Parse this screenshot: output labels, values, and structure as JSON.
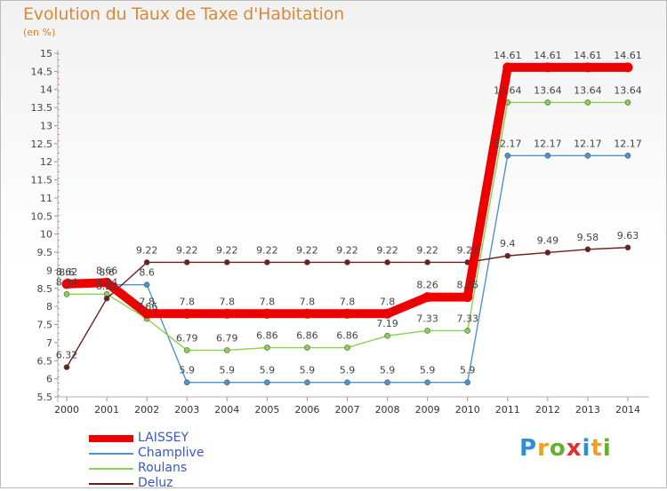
{
  "title": "Evolution du Taux de Taxe d'Habitation",
  "subtitle": "(en %)",
  "logo": {
    "letters": [
      {
        "ch": "P",
        "color": "#2f8fd6"
      },
      {
        "ch": "r",
        "color": "#f0a020"
      },
      {
        "ch": "o",
        "color": "#66b030"
      },
      {
        "ch": "x",
        "color": "#e03030"
      },
      {
        "ch": "i",
        "color": "#2f8fd6"
      },
      {
        "ch": "t",
        "color": "#f0a020"
      },
      {
        "ch": "i",
        "color": "#66b030"
      }
    ]
  },
  "chart_data": {
    "type": "line",
    "title": "Evolution du Taux de Taxe d'Habitation",
    "ylabel": "(en %)",
    "xlabel": "",
    "x": [
      "2000",
      "2001",
      "2002",
      "2003",
      "2004",
      "2005",
      "2006",
      "2007",
      "2008",
      "2009",
      "2010",
      "2011",
      "2012",
      "2013",
      "2014"
    ],
    "ylim": [
      5.5,
      15
    ],
    "yticks": [
      5.5,
      6,
      6.5,
      7,
      7.5,
      8,
      8.5,
      9,
      9.5,
      10,
      10.5,
      11,
      11.5,
      12,
      12.5,
      13,
      13.5,
      14,
      14.5,
      15
    ],
    "ytick_labels": [
      "5.5",
      "6",
      "6.5",
      "7",
      "7.5",
      "8",
      "8.5",
      "9",
      "9.5",
      "10",
      "10.5",
      "11",
      "11.5",
      "12",
      "12.5",
      "13",
      "13.5",
      "14",
      "14.5",
      "15"
    ],
    "grid": false,
    "legend_position": "bottom-left",
    "series": [
      {
        "name": "LAISSEY",
        "color": "#ee0000",
        "thick": true,
        "values": [
          8.62,
          8.66,
          7.8,
          7.8,
          7.8,
          7.8,
          7.8,
          7.8,
          7.8,
          8.26,
          8.26,
          14.61,
          14.61,
          14.61,
          14.61
        ],
        "labels": [
          "8.62",
          "8.66",
          "7.8",
          "7.8",
          "7.8",
          "7.8",
          "7.8",
          "7.8",
          "7.8",
          "8.26",
          "8.26",
          "14.61",
          "14.61",
          "14.61",
          "14.61"
        ]
      },
      {
        "name": "Champlive",
        "color": "#4f93cc",
        "thick": false,
        "values": [
          8.6,
          8.6,
          8.6,
          5.9,
          5.9,
          5.9,
          5.9,
          5.9,
          5.9,
          5.9,
          5.9,
          12.17,
          12.17,
          12.17,
          12.17
        ],
        "labels": [
          "8.6",
          "8.6",
          "8.6",
          "5.9",
          "5.9",
          "5.9",
          "5.9",
          "5.9",
          "5.9",
          "5.9",
          "5.9",
          "12.17",
          "12.17",
          "12.17",
          "12.17"
        ]
      },
      {
        "name": "Roulans",
        "color": "#8ad24a",
        "thick": false,
        "values": [
          8.34,
          8.34,
          7.66,
          6.79,
          6.79,
          6.86,
          6.86,
          6.86,
          7.19,
          7.33,
          7.33,
          13.64,
          13.64,
          13.64,
          13.64
        ],
        "labels": [
          "8.34",
          "8.34",
          "7.66",
          "6.79",
          "6.79",
          "6.86",
          "6.86",
          "6.86",
          "7.19",
          "7.33",
          "7.33",
          "13.64",
          "13.64",
          "13.64",
          "13.64"
        ]
      },
      {
        "name": "Deluz",
        "color": "#6e1e1e",
        "thick": false,
        "values": [
          6.32,
          8.22,
          9.22,
          9.22,
          9.22,
          9.22,
          9.22,
          9.22,
          9.22,
          9.22,
          9.22,
          9.4,
          9.49,
          9.58,
          9.63
        ],
        "labels": [
          "6.32",
          "8.22",
          "9.22",
          "9.22",
          "9.22",
          "9.22",
          "9.22",
          "9.22",
          "9.22",
          "9.22",
          "9.22",
          "9.4",
          "9.49",
          "9.58",
          "9.63"
        ]
      }
    ]
  }
}
